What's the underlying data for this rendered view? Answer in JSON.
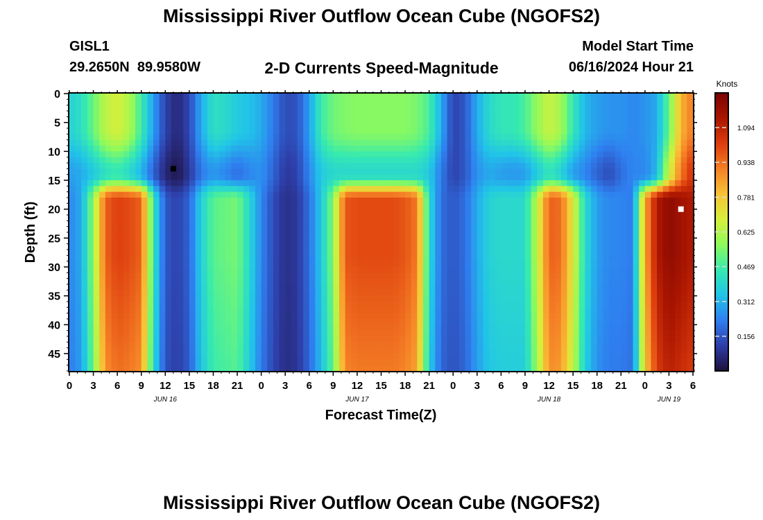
{
  "page": {
    "title": "Mississippi River Outflow Ocean Cube (NGOFS2)",
    "title_repeat": "Mississippi River Outflow Ocean Cube (NGOFS2)",
    "station_id": "GISL1",
    "station_coords": "29.2650N  89.9580W",
    "plot_title": "2-D Currents Speed-Magnitude",
    "model_start_label": "Model Start Time",
    "model_start_value": "06/16/2024 Hour 21"
  },
  "colors": {
    "ramp": [
      "#1e0f3c",
      "#2e3ea8",
      "#2f7ff0",
      "#21c4e8",
      "#36eab0",
      "#8efa5c",
      "#d7ef3a",
      "#f8c236",
      "#f58026",
      "#dd3c0d",
      "#aa1601",
      "#7a0403"
    ],
    "frame": "#000000",
    "marker_max": "#ffffff",
    "marker_min": "#000000"
  },
  "chart_data": {
    "type": "heatmap",
    "xlabel": "Forecast Time(Z)",
    "ylabel": "Depth (ft)",
    "colorbar_label": "Knots",
    "colorbar_ticks": [
      "1.094",
      "0.938",
      "0.781",
      "0.625",
      "0.469",
      "0.312",
      "0.156"
    ],
    "colorbar_range": [
      0.0,
      1.25
    ],
    "x_range_hours_from_jun16_00z": [
      0,
      78
    ],
    "x_tick_labels": [
      "0",
      "3",
      "6",
      "9",
      "12",
      "15",
      "18",
      "21",
      "0",
      "3",
      "6",
      "9",
      "12",
      "15",
      "18",
      "21",
      "0",
      "3",
      "6",
      "9",
      "12",
      "15",
      "18",
      "21",
      "0",
      "3",
      "6"
    ],
    "date_labels": [
      {
        "label": "JUN 16",
        "hour": 12
      },
      {
        "label": "JUN 17",
        "hour": 36
      },
      {
        "label": "JUN 18",
        "hour": 60
      },
      {
        "label": "JUN 19",
        "hour": 75
      }
    ],
    "y_range_ft": [
      0,
      48
    ],
    "y_inverted": true,
    "y_tick_labels": [
      "0",
      "5",
      "10",
      "15",
      "20",
      "25",
      "30",
      "35",
      "40",
      "45"
    ],
    "grid": false,
    "layer_boundary_ft": 16,
    "approx_speed_knots": {
      "hours": [
        0,
        1.5,
        3,
        4.5,
        6,
        7.5,
        9,
        10.5,
        12,
        13.5,
        15,
        16.5,
        18,
        19.5,
        21,
        22.5,
        24,
        25.5,
        27,
        28.5,
        30,
        31.5,
        33,
        34.5,
        36,
        37.5,
        39,
        40.5,
        42,
        43.5,
        45,
        46.5,
        48,
        49.5,
        51,
        52.5,
        54,
        55.5,
        57,
        58.5,
        60,
        61.5,
        63,
        64.5,
        66,
        67.5,
        69,
        70.5,
        72,
        73.5,
        75,
        76.5,
        78
      ],
      "near_surface_0_10ft": [
        0.38,
        0.42,
        0.52,
        0.64,
        0.68,
        0.62,
        0.46,
        0.28,
        0.12,
        0.06,
        0.13,
        0.3,
        0.42,
        0.4,
        0.36,
        0.34,
        0.3,
        0.22,
        0.14,
        0.15,
        0.28,
        0.46,
        0.53,
        0.55,
        0.56,
        0.56,
        0.56,
        0.56,
        0.56,
        0.54,
        0.48,
        0.3,
        0.12,
        0.16,
        0.3,
        0.4,
        0.44,
        0.44,
        0.48,
        0.58,
        0.66,
        0.6,
        0.44,
        0.32,
        0.28,
        0.26,
        0.26,
        0.24,
        0.26,
        0.3,
        0.52,
        0.82,
        0.92
      ],
      "upper_10_15ft": [
        0.28,
        0.3,
        0.36,
        0.42,
        0.45,
        0.4,
        0.32,
        0.18,
        0.06,
        0.02,
        0.1,
        0.22,
        0.27,
        0.24,
        0.2,
        0.24,
        0.26,
        0.18,
        0.1,
        0.12,
        0.24,
        0.36,
        0.4,
        0.4,
        0.4,
        0.4,
        0.4,
        0.4,
        0.4,
        0.4,
        0.36,
        0.22,
        0.12,
        0.16,
        0.26,
        0.3,
        0.28,
        0.27,
        0.28,
        0.36,
        0.44,
        0.38,
        0.28,
        0.24,
        0.18,
        0.14,
        0.2,
        0.24,
        0.24,
        0.32,
        0.66,
        0.92,
        1.06
      ],
      "lower_16_48ft": [
        0.24,
        0.3,
        0.58,
        0.96,
        1.02,
        1.0,
        0.96,
        0.44,
        0.16,
        0.12,
        0.18,
        0.38,
        0.5,
        0.52,
        0.54,
        0.4,
        0.24,
        0.14,
        0.08,
        0.1,
        0.2,
        0.36,
        0.56,
        0.98,
        1.0,
        1.0,
        1.0,
        1.0,
        0.98,
        0.92,
        0.4,
        0.2,
        0.16,
        0.2,
        0.3,
        0.38,
        0.4,
        0.4,
        0.4,
        0.64,
        0.96,
        0.94,
        0.7,
        0.4,
        0.28,
        0.24,
        0.24,
        0.22,
        0.84,
        1.12,
        1.2,
        1.16,
        1.12
      ]
    },
    "markers": [
      {
        "kind": "minimum",
        "hour": 13,
        "depth_ft": 13
      },
      {
        "kind": "maximum",
        "hour": 76.5,
        "depth_ft": 20
      }
    ]
  }
}
